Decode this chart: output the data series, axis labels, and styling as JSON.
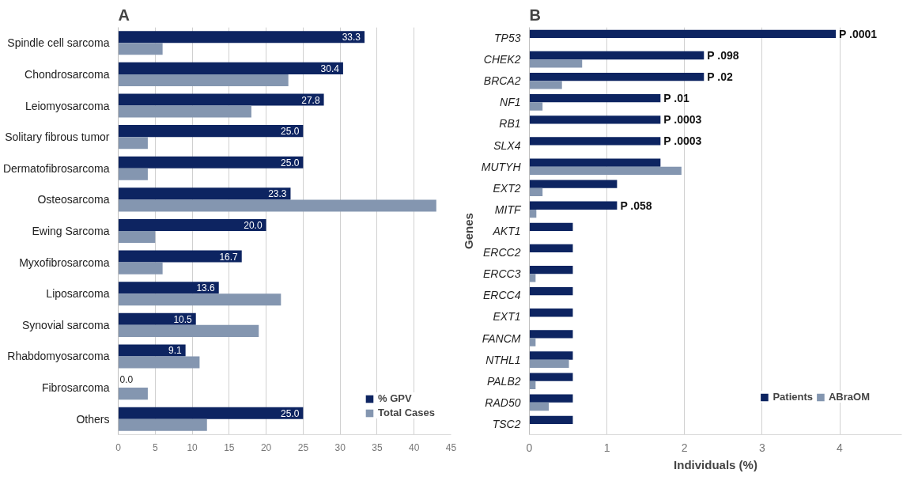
{
  "chart_data": [
    {
      "type": "bar",
      "title": "A",
      "orientation": "horizontal",
      "categories": [
        "Spindle cell sarcoma",
        "Chondrosarcoma",
        "Leiomyosarcoma",
        "Solitary fibrous tumor",
        "Dermatofibrosarcoma",
        "Osteosarcoma",
        "Ewing Sarcoma",
        "Myxofibrosarcoma",
        "Liposarcoma",
        "Synovial sarcoma",
        "Rhabdomyosarcoma",
        "Fibrosarcoma",
        "Others"
      ],
      "series": [
        {
          "name": "% GPV",
          "color": "#0d2461",
          "values": [
            33.3,
            30.4,
            27.8,
            25.0,
            25.0,
            23.3,
            20.0,
            16.7,
            13.6,
            10.5,
            9.1,
            0.0,
            25.0
          ],
          "value_labels": [
            "33.3",
            "30.4",
            "27.8",
            "25.0",
            "25.0",
            "23.3",
            "20.0",
            "16.7",
            "13.6",
            "10.5",
            "9.1",
            "0.0",
            "25.0"
          ]
        },
        {
          "name": "Total Cases",
          "color": "#8496b0",
          "values": [
            6,
            23,
            18,
            4,
            4,
            43,
            5,
            6,
            22,
            19,
            11,
            4,
            12
          ]
        }
      ],
      "xlim": [
        0,
        45
      ],
      "xticks": [
        0,
        5,
        10,
        15,
        20,
        25,
        30,
        35,
        40,
        45
      ],
      "grid": "x",
      "legend": "bottom right"
    },
    {
      "type": "bar",
      "title": "B",
      "orientation": "horizontal",
      "xlabel": "Individuals (%)",
      "ylabel": "Genes",
      "categories": [
        "TP53",
        "CHEK2",
        "BRCA2",
        "NF1",
        "RB1",
        "SLX4",
        "MUTYH",
        "EXT2",
        "MITF",
        "AKT1",
        "ERCC2",
        "ERCC3",
        "ERCC4",
        "EXT1",
        "FANCM",
        "NTHL1",
        "PALB2",
        "RAD50",
        "TSC2"
      ],
      "series": [
        {
          "name": "Patients",
          "color": "#0d2461",
          "values": [
            3.95,
            2.25,
            2.25,
            1.69,
            1.69,
            1.69,
            1.69,
            1.13,
            1.13,
            0.56,
            0.56,
            0.56,
            0.56,
            0.56,
            0.56,
            0.56,
            0.56,
            0.56,
            0.56
          ]
        },
        {
          "name": "ABraOM",
          "color": "#8496b0",
          "values": [
            0,
            0.68,
            0.42,
            0.17,
            0,
            0,
            1.96,
            0.17,
            0.09,
            0,
            0,
            0.08,
            0,
            0,
            0.08,
            0.51,
            0.08,
            0.25,
            0
          ]
        }
      ],
      "annotations": [
        {
          "text": "P .0001",
          "x": 3.95,
          "y": "TP53"
        },
        {
          "text": "P .098",
          "x": 2.25,
          "y": "CHEK2"
        },
        {
          "text": "P .02",
          "x": 2.25,
          "y": "BRCA2"
        },
        {
          "text": "P .01",
          "x": 1.69,
          "y": "NF1"
        },
        {
          "text": "P .0003",
          "x": 1.69,
          "y": "RB1"
        },
        {
          "text": "P .0003",
          "x": 1.69,
          "y": "SLX4"
        },
        {
          "text": "P .058",
          "x": 1.13,
          "y": "MITF"
        }
      ],
      "xlim": [
        0,
        4.8
      ],
      "xticks": [
        0,
        1,
        2,
        3,
        4
      ],
      "grid": "x",
      "legend": "bottom right"
    }
  ]
}
